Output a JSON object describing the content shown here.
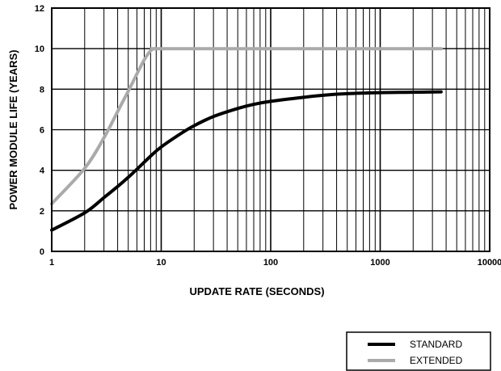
{
  "chart_data": {
    "type": "line",
    "xlabel": "UPDATE RATE (SECONDS)",
    "ylabel": "POWER MODULE LIFE (YEARS)",
    "x_scale": "log",
    "xlim": [
      1,
      10000
    ],
    "ylim": [
      0,
      12
    ],
    "x_ticks": [
      1,
      10,
      100,
      1000,
      10000
    ],
    "x_tick_labels": [
      "1",
      "10",
      "100",
      "1000",
      "10000"
    ],
    "y_ticks": [
      0,
      2,
      4,
      6,
      8,
      10,
      12
    ],
    "y_tick_labels": [
      "0",
      "2",
      "4",
      "6",
      "8",
      "10",
      "12"
    ],
    "grid": true,
    "legend_position": "bottom-right",
    "series": [
      {
        "name": "STANDARD",
        "color": "#000000",
        "x": [
          1,
          2,
          3,
          4,
          5,
          6,
          8,
          10,
          15,
          20,
          30,
          50,
          70,
          100,
          200,
          300,
          500,
          1000,
          2000,
          3600
        ],
        "y": [
          1.05,
          1.9,
          2.65,
          3.2,
          3.65,
          4.05,
          4.7,
          5.15,
          5.8,
          6.2,
          6.65,
          7.05,
          7.25,
          7.4,
          7.6,
          7.7,
          7.78,
          7.83,
          7.85,
          7.87
        ]
      },
      {
        "name": "EXTENDED",
        "color": "#aaaaaa",
        "x": [
          1,
          2,
          3,
          4,
          5,
          6,
          7,
          8,
          8.6,
          9,
          10,
          100,
          1000,
          3600
        ],
        "y": [
          2.35,
          4.1,
          5.6,
          6.9,
          7.9,
          8.75,
          9.45,
          9.9,
          10.0,
          10.0,
          10.0,
          10.0,
          10.0,
          10.0
        ]
      }
    ]
  }
}
